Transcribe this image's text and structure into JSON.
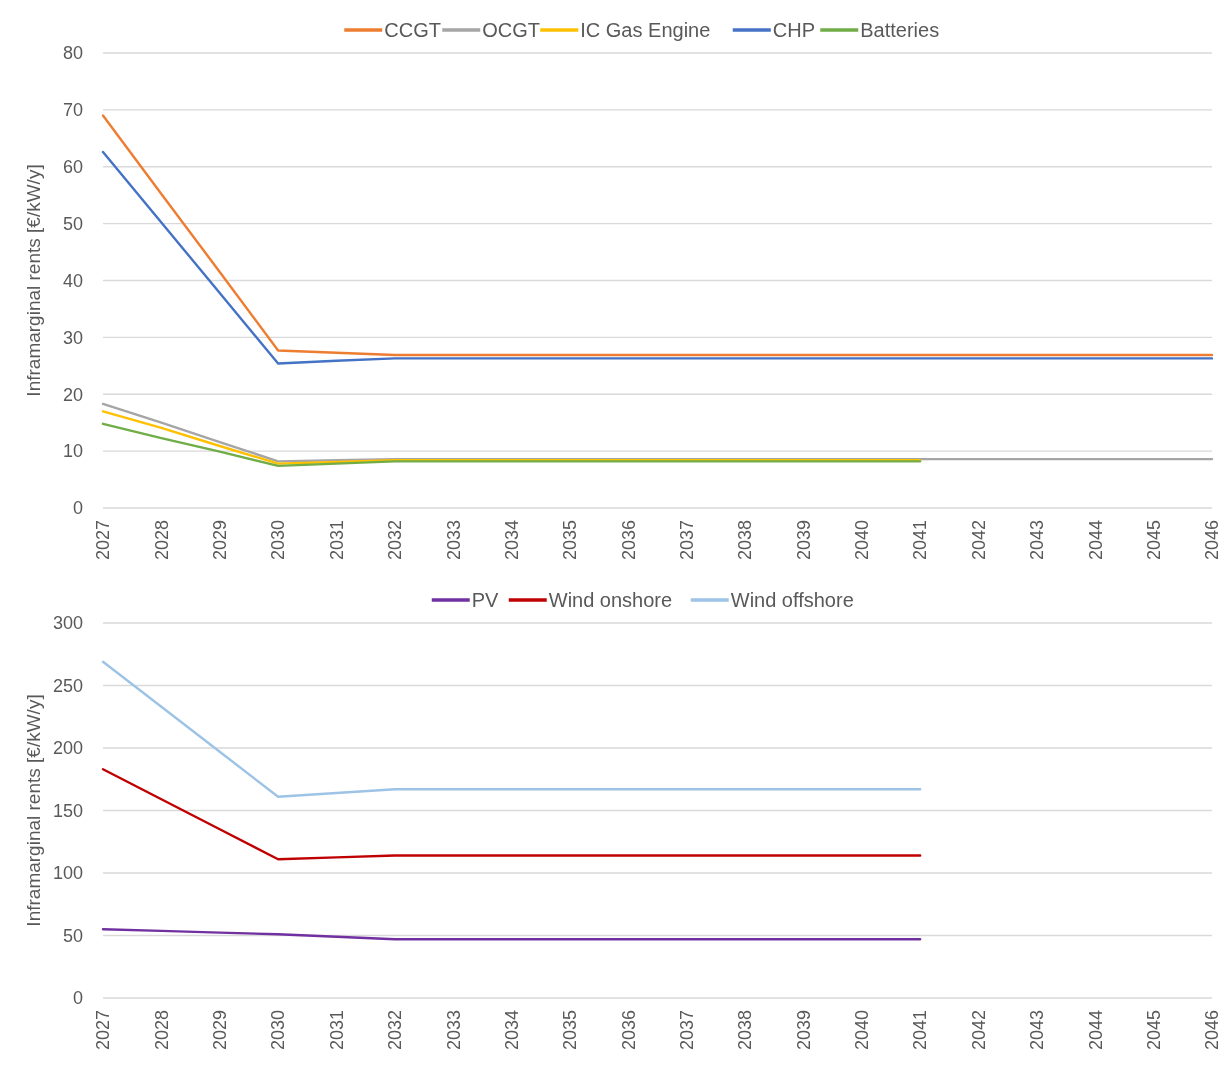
{
  "chart_data": [
    {
      "type": "line",
      "ylabel": "Inframarginal rents [€/kW/y]",
      "categories": [
        "2027",
        "2028",
        "2029",
        "2030",
        "2031",
        "2032",
        "2033",
        "2034",
        "2035",
        "2036",
        "2037",
        "2038",
        "2039",
        "2040",
        "2041",
        "2042",
        "2043",
        "2044",
        "2045",
        "2046"
      ],
      "ylim": [
        0,
        80
      ],
      "yticks": [
        0,
        10,
        20,
        30,
        40,
        50,
        60,
        70,
        80
      ],
      "grid": "y",
      "legend": "top",
      "line_style": "solid",
      "marker": "none",
      "series": [
        {
          "name": "CCGT",
          "color": "#ed7d31",
          "values": [
            69,
            55.2,
            41.5,
            27.7,
            27.3,
            26.9,
            26.9,
            26.9,
            26.9,
            26.9,
            26.9,
            26.9,
            26.9,
            26.9,
            26.9,
            26.9,
            26.9,
            26.9,
            26.9,
            26.9
          ]
        },
        {
          "name": "OCGT",
          "color": "#a5a5a5",
          "values": [
            18.3,
            15,
            11.6,
            8.2,
            8.4,
            8.6,
            8.6,
            8.6,
            8.6,
            8.6,
            8.6,
            8.6,
            8.6,
            8.6,
            8.6,
            8.6,
            8.6,
            8.6,
            8.6,
            8.6
          ]
        },
        {
          "name": "IC Gas Engine",
          "color": "#ffc000",
          "values": [
            17,
            14.1,
            10.9,
            7.8,
            8.1,
            8.4,
            8.4,
            8.4,
            8.4,
            8.4,
            8.4,
            8.4,
            8.4,
            8.4,
            8.4,
            null,
            null,
            null,
            null,
            null
          ]
        },
        {
          "name": "CHP",
          "color": "#4472c4",
          "values": [
            62.6,
            50.2,
            37.8,
            25.4,
            25.9,
            26.3,
            26.3,
            26.3,
            26.3,
            26.3,
            26.3,
            26.3,
            26.3,
            26.3,
            26.3,
            26.3,
            26.3,
            26.3,
            26.3,
            26.3
          ]
        },
        {
          "name": "Batteries",
          "color": "#70ad47",
          "values": [
            14.8,
            12.3,
            9.9,
            7.4,
            7.8,
            8.2,
            8.2,
            8.2,
            8.2,
            8.2,
            8.2,
            8.2,
            8.2,
            8.2,
            8.2,
            null,
            null,
            null,
            null,
            null
          ]
        }
      ]
    },
    {
      "type": "line",
      "ylabel": "Inframarginal rents [€/kW/y]",
      "categories": [
        "2027",
        "2028",
        "2029",
        "2030",
        "2031",
        "2032",
        "2033",
        "2034",
        "2035",
        "2036",
        "2037",
        "2038",
        "2039",
        "2040",
        "2041",
        "2042",
        "2043",
        "2044",
        "2045",
        "2046"
      ],
      "ylim": [
        0,
        300
      ],
      "yticks": [
        0,
        50,
        100,
        150,
        200,
        250,
        300
      ],
      "grid": "y",
      "legend": "top",
      "line_style": "solid",
      "marker": "none",
      "series": [
        {
          "name": "PV",
          "color": "#7030a0",
          "values": [
            55,
            53.7,
            52.3,
            51,
            49,
            47,
            47,
            47,
            47,
            47,
            47,
            47,
            47,
            47,
            47,
            null,
            null,
            null,
            null,
            null
          ]
        },
        {
          "name": "Wind onshore",
          "color": "#c00000",
          "values": [
            183,
            159,
            135,
            111,
            112.5,
            114,
            114,
            114,
            114,
            114,
            114,
            114,
            114,
            114,
            114,
            null,
            null,
            null,
            null,
            null
          ]
        },
        {
          "name": "Wind offshore",
          "color": "#9dc3e6",
          "values": [
            269,
            233,
            197,
            161,
            164,
            167,
            167,
            167,
            167,
            167,
            167,
            167,
            167,
            167,
            167,
            null,
            null,
            null,
            null,
            null
          ]
        }
      ]
    }
  ]
}
